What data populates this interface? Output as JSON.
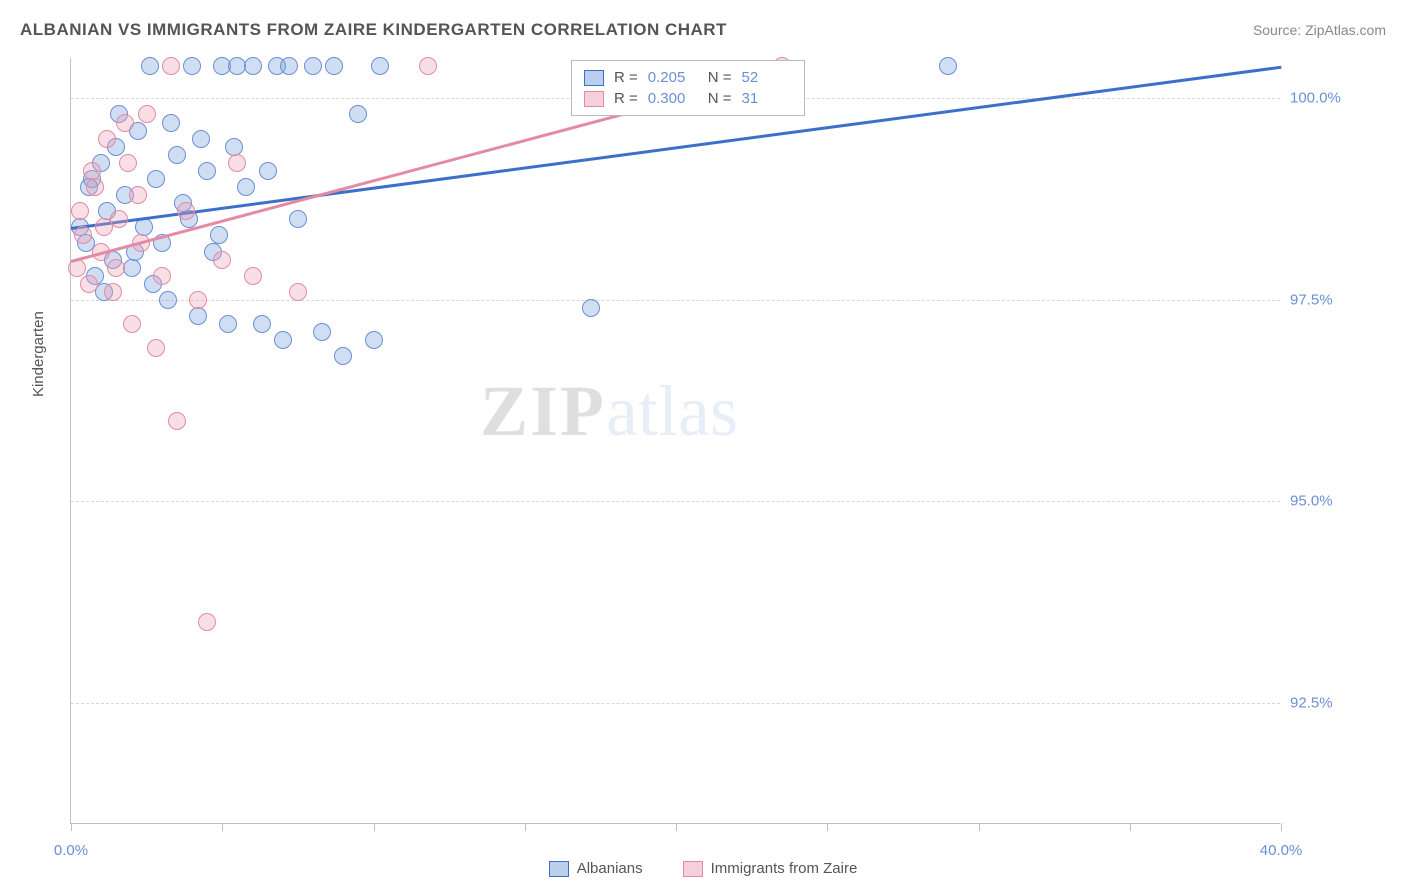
{
  "title": "ALBANIAN VS IMMIGRANTS FROM ZAIRE KINDERGARTEN CORRELATION CHART",
  "source": "Source: ZipAtlas.com",
  "ylabel": "Kindergarten",
  "watermark_zip": "ZIP",
  "watermark_atlas": "atlas",
  "chart": {
    "type": "scatter",
    "xlim": [
      0,
      40
    ],
    "ylim": [
      91,
      100.5
    ],
    "xtick_labels": {
      "0": "0.0%",
      "40": "40.0%"
    },
    "xtick_positions": [
      0,
      5,
      10,
      15,
      20,
      25,
      30,
      35,
      40
    ],
    "ytick_positions": [
      92.5,
      95.0,
      97.5,
      100.0
    ],
    "ytick_labels": {
      "92.5": "92.5%",
      "95.0": "95.0%",
      "97.5": "97.5%",
      "100.0": "100.0%"
    },
    "colors": {
      "blue_fill": "rgba(120,160,220,0.35)",
      "blue_stroke": "#6b8fd4",
      "blue_line": "#3b6fc9",
      "pink_fill": "rgba(235,160,180,0.35)",
      "pink_stroke": "#e48aa5",
      "pink_line": "#e48aa5",
      "grid": "#d8d8d8",
      "axis": "#c0c0c0",
      "text": "#555555",
      "value_text": "#6b8fd4"
    },
    "series": [
      {
        "name": "Albanians",
        "color": "blue",
        "R": "0.205",
        "N": "52",
        "regression": {
          "x1": 0,
          "y1": 98.4,
          "x2": 40,
          "y2": 100.4
        },
        "points": [
          [
            0.3,
            98.4
          ],
          [
            0.5,
            98.2
          ],
          [
            0.7,
            99.0
          ],
          [
            0.8,
            97.8
          ],
          [
            1.0,
            99.2
          ],
          [
            1.2,
            98.6
          ],
          [
            1.4,
            98.0
          ],
          [
            1.5,
            99.4
          ],
          [
            1.8,
            98.8
          ],
          [
            2.0,
            97.9
          ],
          [
            2.2,
            99.6
          ],
          [
            2.4,
            98.4
          ],
          [
            2.6,
            100.4
          ],
          [
            2.8,
            99.0
          ],
          [
            3.0,
            98.2
          ],
          [
            3.2,
            97.5
          ],
          [
            3.5,
            99.3
          ],
          [
            3.7,
            98.7
          ],
          [
            4.0,
            100.4
          ],
          [
            4.2,
            97.3
          ],
          [
            4.5,
            99.1
          ],
          [
            4.7,
            98.1
          ],
          [
            5.0,
            100.4
          ],
          [
            5.2,
            97.2
          ],
          [
            5.5,
            100.4
          ],
          [
            5.8,
            98.9
          ],
          [
            6.0,
            100.4
          ],
          [
            6.3,
            97.2
          ],
          [
            6.5,
            99.1
          ],
          [
            6.8,
            100.4
          ],
          [
            7.0,
            97.0
          ],
          [
            7.2,
            100.4
          ],
          [
            7.5,
            98.5
          ],
          [
            8.0,
            100.4
          ],
          [
            8.3,
            97.1
          ],
          [
            8.7,
            100.4
          ],
          [
            9.0,
            96.8
          ],
          [
            9.5,
            99.8
          ],
          [
            10.0,
            97.0
          ],
          [
            10.2,
            100.4
          ],
          [
            17.2,
            97.4
          ],
          [
            29.0,
            100.4
          ],
          [
            0.6,
            98.9
          ],
          [
            1.1,
            97.6
          ],
          [
            1.6,
            99.8
          ],
          [
            2.1,
            98.1
          ],
          [
            2.7,
            97.7
          ],
          [
            3.3,
            99.7
          ],
          [
            3.9,
            98.5
          ],
          [
            4.3,
            99.5
          ],
          [
            4.9,
            98.3
          ],
          [
            5.4,
            99.4
          ]
        ]
      },
      {
        "name": "Immigrants from Zaire",
        "color": "pink",
        "R": "0.300",
        "N": "31",
        "regression": {
          "x1": 0,
          "y1": 98.0,
          "x2": 24,
          "y2": 100.4
        },
        "points": [
          [
            0.2,
            97.9
          ],
          [
            0.4,
            98.3
          ],
          [
            0.6,
            97.7
          ],
          [
            0.8,
            98.9
          ],
          [
            1.0,
            98.1
          ],
          [
            1.2,
            99.5
          ],
          [
            1.4,
            97.6
          ],
          [
            1.6,
            98.5
          ],
          [
            1.8,
            99.7
          ],
          [
            2.0,
            97.2
          ],
          [
            2.2,
            98.8
          ],
          [
            2.5,
            99.8
          ],
          [
            2.8,
            96.9
          ],
          [
            3.0,
            97.8
          ],
          [
            3.3,
            100.4
          ],
          [
            3.5,
            96.0
          ],
          [
            3.8,
            98.6
          ],
          [
            4.2,
            97.5
          ],
          [
            4.5,
            93.5
          ],
          [
            5.0,
            98.0
          ],
          [
            5.5,
            99.2
          ],
          [
            6.0,
            97.8
          ],
          [
            7.5,
            97.6
          ],
          [
            11.8,
            100.4
          ],
          [
            23.5,
            100.4
          ],
          [
            0.3,
            98.6
          ],
          [
            0.7,
            99.1
          ],
          [
            1.1,
            98.4
          ],
          [
            1.5,
            97.9
          ],
          [
            1.9,
            99.2
          ],
          [
            2.3,
            98.2
          ]
        ]
      }
    ]
  },
  "stats_box": {
    "rows": [
      {
        "swatch": "blue",
        "R_label": "R =",
        "R_val": "0.205",
        "N_label": "N =",
        "N_val": "52"
      },
      {
        "swatch": "pink",
        "R_label": "R =",
        "R_val": "0.300",
        "N_label": "N =",
        "N_val": "31"
      }
    ]
  },
  "legend": [
    {
      "swatch": "blue",
      "label": "Albanians"
    },
    {
      "swatch": "pink",
      "label": "Immigrants from Zaire"
    }
  ]
}
